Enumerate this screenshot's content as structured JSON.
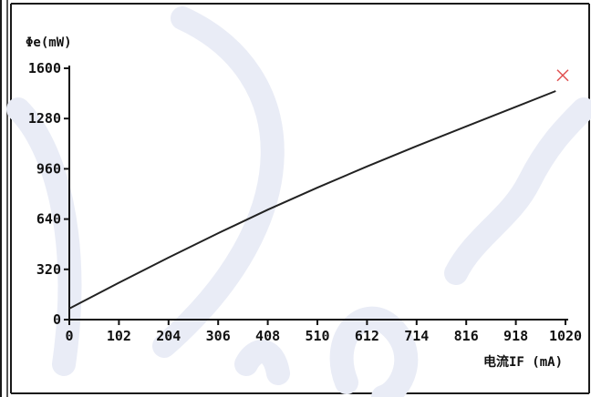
{
  "chart_data": {
    "type": "line",
    "title": "",
    "ylabel": "Φe(mW)",
    "xlabel": "电流IF (mA)",
    "x_ticks": [
      "0",
      "102",
      "204",
      "306",
      "408",
      "510",
      "612",
      "714",
      "816",
      "918",
      "1020"
    ],
    "y_ticks": [
      "0",
      "320",
      "640",
      "960",
      "1280",
      "1600"
    ],
    "xlim": [
      0,
      1020
    ],
    "ylim": [
      0,
      1600
    ],
    "grid": false,
    "series": [
      {
        "color": "#222222",
        "x": [
          0,
          102,
          204,
          306,
          408,
          510,
          612,
          714,
          816,
          918,
          1000
        ],
        "y": [
          70,
          235,
          395,
          550,
          700,
          840,
          975,
          1105,
          1230,
          1355,
          1455
        ]
      }
    ],
    "end_marker": {
      "x": 1020,
      "y": 1555,
      "color": "#e05050"
    },
    "colors": {
      "frame": "#1a1a1a",
      "axis": "#111111",
      "watermark": "#e9ecf6"
    }
  }
}
